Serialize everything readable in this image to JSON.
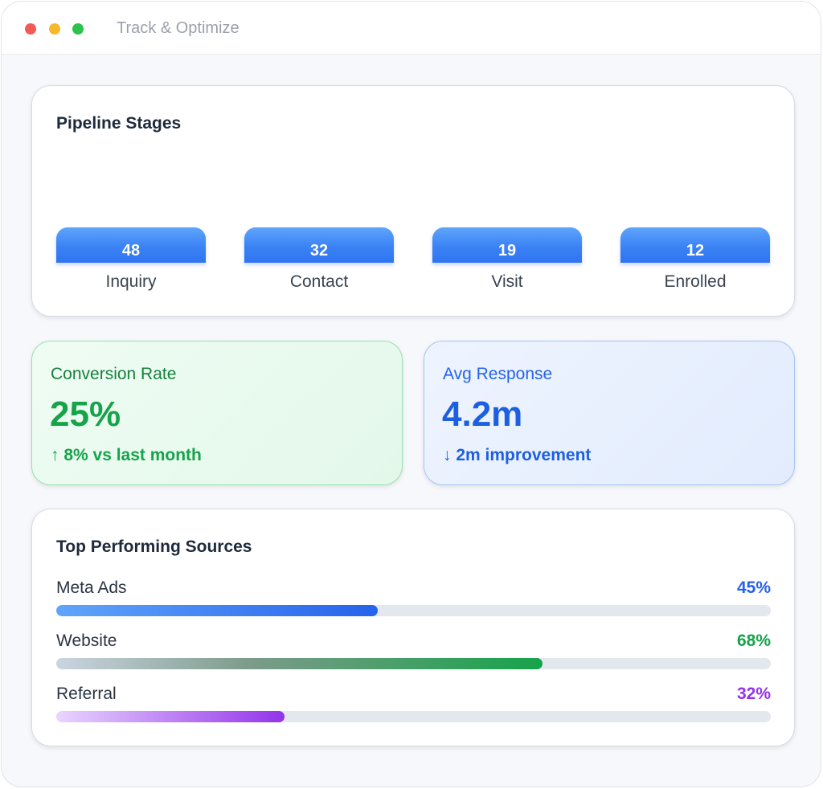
{
  "window": {
    "title": "Track & Optimize"
  },
  "pipeline": {
    "title": "Pipeline Stages",
    "stages": [
      {
        "value": "48",
        "label": "Inquiry"
      },
      {
        "value": "32",
        "label": "Contact"
      },
      {
        "value": "19",
        "label": "Visit"
      },
      {
        "value": "12",
        "label": "Enrolled"
      }
    ]
  },
  "metrics": {
    "conversion": {
      "label": "Conversion Rate",
      "value": "25%",
      "note": "↑ 8% vs last month",
      "color": "#16a34a"
    },
    "response": {
      "label": "Avg Response",
      "value": "4.2m",
      "note": "↓ 2m improvement",
      "color": "#2563eb"
    }
  },
  "sources": {
    "title": "Top Performing Sources",
    "items": [
      {
        "name": "Meta Ads",
        "percent_label": "45%",
        "percent": 45,
        "color": "#2563eb"
      },
      {
        "name": "Website",
        "percent_label": "68%",
        "percent": 68,
        "color": "#16a34a"
      },
      {
        "name": "Referral",
        "percent_label": "32%",
        "percent": 32,
        "color": "#9333ea"
      }
    ]
  }
}
